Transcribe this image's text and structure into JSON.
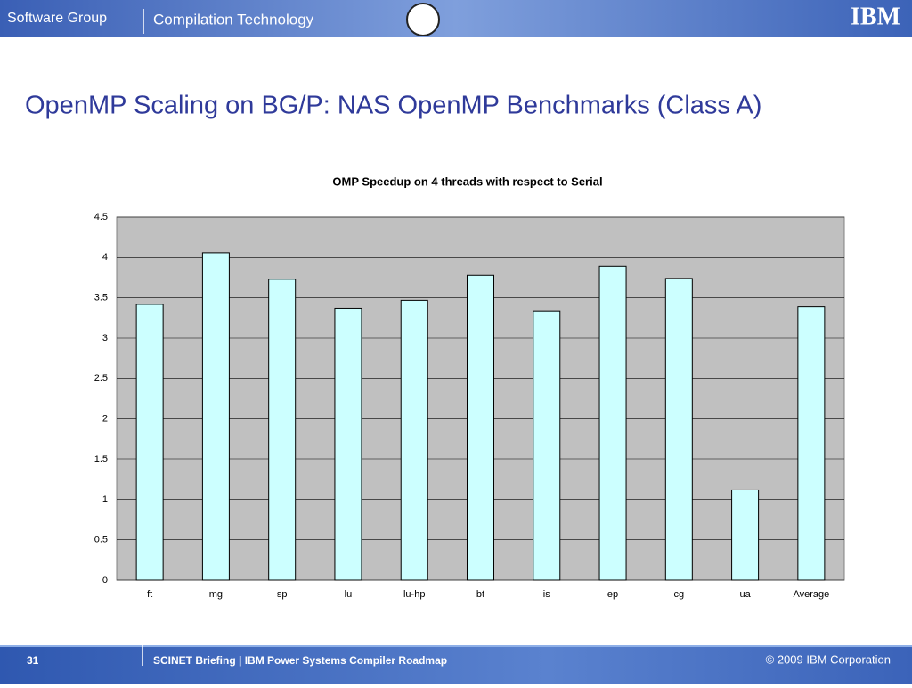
{
  "header": {
    "group": "Software Group",
    "product": "Compilation Technology",
    "logo": "IBM"
  },
  "title": "OpenMP Scaling on BG/P: NAS OpenMP Benchmarks (Class A)",
  "chart_data": {
    "type": "bar",
    "title": "OMP Speedup on 4 threads with respect to Serial",
    "categories": [
      "ft",
      "mg",
      "sp",
      "lu",
      "lu-hp",
      "bt",
      "is",
      "ep",
      "cg",
      "ua",
      "Average"
    ],
    "values": [
      3.42,
      4.06,
      3.73,
      3.37,
      3.47,
      3.78,
      3.34,
      3.89,
      3.74,
      1.12,
      3.39
    ],
    "color": "#ccffff",
    "background": "#c0c0c0",
    "ylim": [
      0,
      4.5
    ],
    "yticks": [
      0,
      0.5,
      1,
      1.5,
      2,
      2.5,
      3,
      3.5,
      4,
      4.5
    ],
    "grid": true
  },
  "footer": {
    "page": "31",
    "text": "SCINET Briefing  | IBM  Power Systems Compiler Roadmap",
    "copyright": "© 2009 IBM Corporation"
  }
}
